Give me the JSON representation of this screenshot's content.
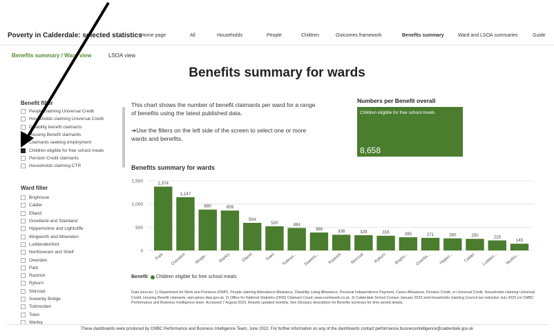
{
  "app": {
    "title": "Poverty in Calderdale: selected statistics"
  },
  "nav": [
    {
      "label": "Home page",
      "active": false
    },
    {
      "label": "All",
      "active": false
    },
    {
      "label": "Households",
      "active": false
    },
    {
      "label": "People",
      "active": false
    },
    {
      "label": "Children",
      "active": false
    },
    {
      "label": "Outcomes framework",
      "active": false
    },
    {
      "label": "Benefits summary",
      "active": true
    },
    {
      "label": "Ward and LSOA summaries",
      "active": false
    },
    {
      "label": "Guide",
      "active": false
    }
  ],
  "subnav": {
    "active": "Benefits summary / Ward view",
    "inactive": "LSOA view"
  },
  "page": {
    "title": "Benefits summary for wards"
  },
  "benefit_filter": {
    "heading": "Benefit filter",
    "items": [
      {
        "label": "People claiming Universal Credit",
        "checked": false
      },
      {
        "label": "Households claiming Universal Credit",
        "checked": false
      },
      {
        "label": "Disability benefit claimants",
        "checked": false
      },
      {
        "label": "Housing Benefit claimants",
        "checked": false
      },
      {
        "label": "Claimants seeking employment",
        "checked": false
      },
      {
        "label": "Children eligible for free school meals",
        "checked": true
      },
      {
        "label": "Pension Credit claimants",
        "checked": false
      },
      {
        "label": "Households claiming CTR",
        "checked": false
      }
    ]
  },
  "ward_filter": {
    "heading": "Ward filter",
    "items": [
      {
        "label": "Brighouse",
        "checked": false
      },
      {
        "label": "Calder",
        "checked": false
      },
      {
        "label": "Elland",
        "checked": false
      },
      {
        "label": "Greetland and Stainland",
        "checked": false
      },
      {
        "label": "Hipperholme and Lightcliffe",
        "checked": false
      },
      {
        "label": "Illingworth and Mixenden",
        "checked": false
      },
      {
        "label": "Luddendenfoot",
        "checked": false
      },
      {
        "label": "Northowram and Shelf",
        "checked": false
      },
      {
        "label": "Ovenden",
        "checked": false
      },
      {
        "label": "Park",
        "checked": false
      },
      {
        "label": "Rastrick",
        "checked": false
      },
      {
        "label": "Ryburn",
        "checked": false
      },
      {
        "label": "Skircoat",
        "checked": false
      },
      {
        "label": "Sowerby Bridge",
        "checked": false
      },
      {
        "label": "Todmorden",
        "checked": false
      },
      {
        "label": "Town",
        "checked": false
      },
      {
        "label": "Warley",
        "checked": false
      }
    ]
  },
  "intro": {
    "p1": "This chart shows the number of benefit claimants per ward for a range of benefits using the latest published data.",
    "p2": "➔Use the filters on the left side of the screen to select one or more wards and benefits."
  },
  "card": {
    "heading": "Numbers per Benefit overall",
    "label": "Children eligible for free school meals",
    "value": "8,658"
  },
  "chart_title": "Benefits summary for wards",
  "chart_data": {
    "type": "bar",
    "title": "Benefits summary for wards",
    "categories": [
      "Park",
      "Ovenden",
      "Illingw...",
      "Warley",
      "Elland",
      "Town",
      "Todmor...",
      "Sowerb...",
      "Rastrick",
      "Skircoat",
      "Ryburn",
      "Brigho...",
      "Greetla...",
      "Hipper...",
      "Calder",
      "Ludden...",
      "Northo..."
    ],
    "series": [
      {
        "name": "Children eligible for free school meals",
        "values": [
          1374,
          1147,
          880,
          859,
          594,
          520,
          484,
          386,
          338,
          329,
          316,
          285,
          271,
          260,
          250,
          216,
          145
        ]
      }
    ],
    "data_labels": [
      "1,374",
      "1,147",
      "880",
      "859",
      "594",
      "520",
      "484",
      "386",
      "338",
      "329",
      "316",
      "285",
      "271",
      "260",
      "250",
      "216",
      "145"
    ],
    "y_ticks": [
      "0",
      "500",
      "1,000",
      "1,500"
    ],
    "ylim": [
      0,
      1500
    ],
    "grid": true,
    "legend": "bottom-left",
    "color": "#4a7d2e"
  },
  "legend": {
    "title": "Benefit",
    "label": "Children eligible for free school meals"
  },
  "sources": "Data sources: 1) Department for Work and Pensions (DWP), People claiming Attendance Allowance, Disability Living Allowance, Personal Independence Payment, Carers Allowance, Pension Credit, or Universal Credit, Households claiming Universal Credit, Housing Benefit claimants; stat-xplore.dwp.gov.uk. 2) Office for National Statistics (ONS) Claimant Count; www.nomisweb.co.uk. 3) Calderdale School Census January 2023 and Households claiming Council tax reduction July 2023 c/o CMBC Performance and Business Intelligence team. Accessed 7 August 2023. Results updated monthly. See Glossary description for Benefits summary for time period details.",
  "footer": "These dashboards were produced by CMBC Performance and Business Intelligence Team, June 2022. For further information on any of the dashboards contact performance.businessintelligence@calderdale.gov.uk"
}
